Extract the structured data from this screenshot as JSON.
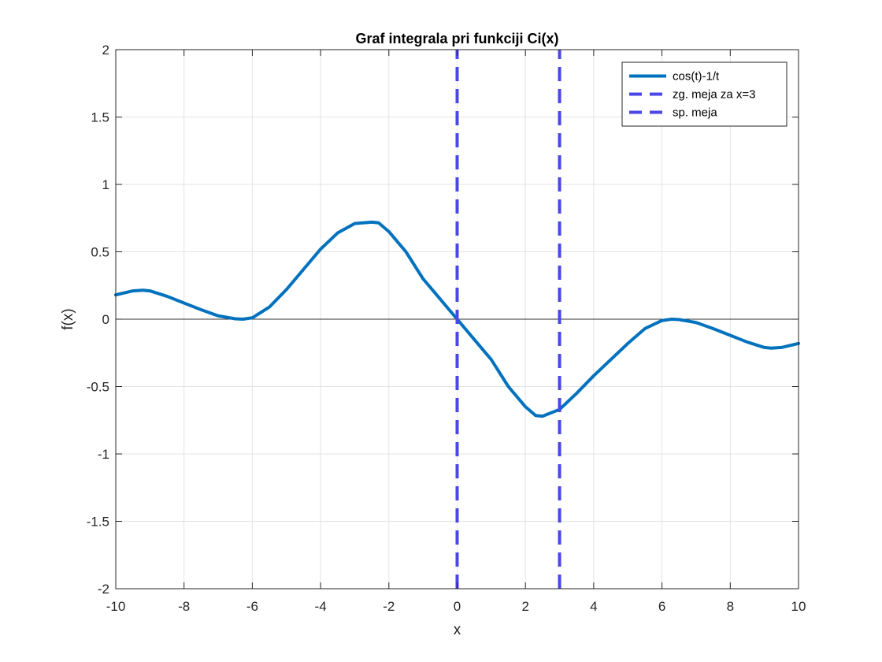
{
  "chart_data": {
    "type": "line",
    "title": "Graf integrala pri funkciji Ci(x)",
    "xlabel": "x",
    "ylabel": "f(x)",
    "xlim": [
      -10,
      10
    ],
    "ylim": [
      -2,
      2
    ],
    "grid": true,
    "legend_position": "top-right",
    "x_ticks": [
      -10,
      -8,
      -6,
      -4,
      -2,
      0,
      2,
      4,
      6,
      8,
      10
    ],
    "y_ticks": [
      -2,
      -1.5,
      -1,
      -0.5,
      0,
      0.5,
      1,
      1.5,
      2
    ],
    "x_tick_labels": [
      "-10",
      "-8",
      "-6",
      "-4",
      "-2",
      "0",
      "2",
      "4",
      "6",
      "8",
      "10"
    ],
    "y_tick_labels": [
      "-2",
      "-1.5",
      "-1",
      "-0.5",
      "0",
      "0.5",
      "1",
      "1.5",
      "2"
    ],
    "series": [
      {
        "name": "cos(t)-1/t",
        "style": "solid",
        "color": "#0072BD",
        "x": [
          -10,
          -9.5,
          -9.2,
          -9,
          -8.5,
          -8,
          -7.5,
          -7,
          -6.5,
          -6.28,
          -6,
          -5.5,
          -5,
          -4.5,
          -4,
          -3.5,
          -3,
          -2.5,
          -2.3,
          -2,
          -1.5,
          -1,
          -0.5,
          0,
          0.5,
          1,
          1.5,
          2,
          2.3,
          2.5,
          3,
          3.5,
          4,
          4.5,
          5,
          5.5,
          6,
          6.28,
          6.5,
          7,
          7.5,
          8,
          8.5,
          9,
          9.2,
          9.5,
          10
        ],
        "y": [
          0.18,
          0.21,
          0.215,
          0.21,
          0.17,
          0.12,
          0.07,
          0.025,
          0.003,
          0.0,
          0.01,
          0.09,
          0.22,
          0.37,
          0.52,
          0.64,
          0.71,
          0.72,
          0.715,
          0.65,
          0.5,
          0.3,
          0.15,
          0.0,
          -0.15,
          -0.3,
          -0.5,
          -0.65,
          -0.715,
          -0.72,
          -0.67,
          -0.55,
          -0.42,
          -0.3,
          -0.18,
          -0.07,
          -0.01,
          0.0,
          -0.003,
          -0.025,
          -0.07,
          -0.12,
          -0.17,
          -0.21,
          -0.215,
          -0.21,
          -0.18
        ]
      },
      {
        "name": "zg. meja za x=3",
        "style": "dashed",
        "color": "#4A46E8",
        "x": [
          3,
          3
        ],
        "y": [
          -2,
          2
        ]
      },
      {
        "name": "sp. meja",
        "style": "dashed",
        "color": "#4A46E8",
        "x": [
          0,
          0
        ],
        "y": [
          -2,
          2
        ]
      }
    ]
  }
}
